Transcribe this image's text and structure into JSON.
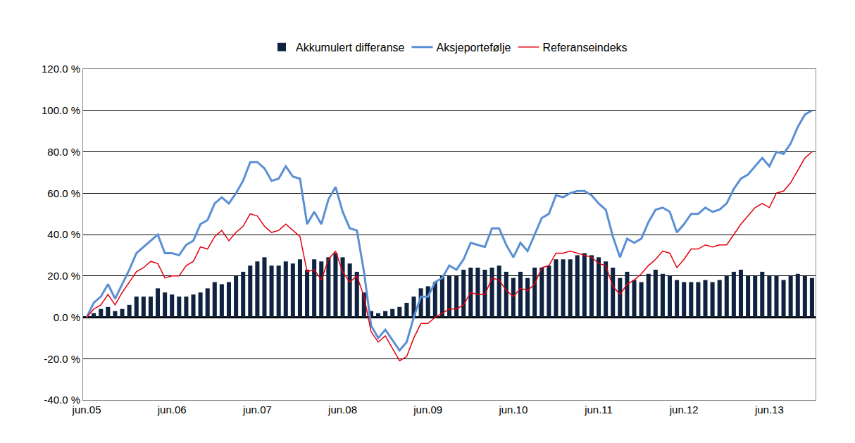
{
  "chart_data": {
    "type": "bar",
    "categories": [
      "jun.05",
      null,
      null,
      null,
      null,
      null,
      null,
      null,
      null,
      null,
      null,
      null,
      "jun.06",
      null,
      null,
      null,
      null,
      null,
      null,
      null,
      null,
      null,
      null,
      null,
      "jun.07",
      null,
      null,
      null,
      null,
      null,
      null,
      null,
      null,
      null,
      null,
      null,
      "jun.08",
      null,
      null,
      null,
      null,
      null,
      null,
      null,
      null,
      null,
      null,
      null,
      "jun.09",
      null,
      null,
      null,
      null,
      null,
      null,
      null,
      null,
      null,
      null,
      null,
      "jun.10",
      null,
      null,
      null,
      null,
      null,
      null,
      null,
      null,
      null,
      null,
      null,
      "jun.11",
      null,
      null,
      null,
      null,
      null,
      null,
      null,
      null,
      null,
      null,
      null,
      "jun.12",
      null,
      null,
      null,
      null,
      null,
      null,
      null,
      null,
      null,
      null,
      null,
      "jun.13",
      null,
      null,
      null,
      null,
      null,
      null
    ],
    "series": [
      {
        "name": "Akkumulert differanse",
        "type": "bar",
        "color": "#0f2340",
        "values": [
          0,
          2,
          4,
          5,
          3,
          4,
          6,
          10,
          10,
          10,
          14,
          12,
          11,
          10,
          10,
          11,
          12,
          14,
          17,
          16,
          17,
          20,
          22,
          25,
          27,
          29,
          25,
          25,
          27,
          26,
          28,
          23,
          28,
          27,
          29,
          31,
          29,
          26,
          22,
          12,
          3,
          2,
          3,
          4,
          5,
          7,
          10,
          14,
          15,
          17,
          20,
          20,
          20,
          23,
          24,
          24,
          23,
          24,
          25,
          22,
          19,
          22,
          19,
          24,
          24,
          25,
          28,
          28,
          28,
          30,
          31,
          30,
          29,
          27,
          24,
          19,
          22,
          18,
          17,
          21,
          23,
          21,
          20,
          18,
          17,
          17,
          17,
          18,
          17,
          18,
          20,
          22,
          23,
          20,
          20,
          22,
          20,
          20,
          18,
          20,
          21,
          20,
          19
        ]
      },
      {
        "name": "Aksjeportefølje",
        "type": "line",
        "color": "#5b8fd4",
        "values": [
          0,
          7,
          10,
          16,
          9,
          16,
          23,
          31,
          34,
          37,
          40,
          31,
          31,
          30,
          35,
          37,
          45,
          47,
          55,
          58,
          55,
          60,
          66,
          75,
          75,
          72,
          66,
          67,
          73,
          68,
          67,
          45,
          51,
          45,
          57,
          63,
          51,
          43,
          42,
          22,
          -4,
          -10,
          -6,
          -11,
          -16,
          -12,
          0,
          10,
          10,
          17,
          19,
          25,
          23,
          28,
          36,
          35,
          34,
          43,
          43,
          35,
          29,
          36,
          32,
          40,
          48,
          50,
          59,
          58,
          60,
          61,
          61,
          59,
          55,
          52,
          39,
          29,
          38,
          36,
          38,
          46,
          52,
          53,
          51,
          41,
          45,
          50,
          50,
          53,
          51,
          52,
          55,
          62,
          67,
          69,
          73,
          77,
          73,
          80,
          79,
          84,
          92,
          98,
          100
        ]
      },
      {
        "name": "Referanseindeks",
        "type": "line",
        "color": "#e3000f",
        "values": [
          0,
          4,
          6,
          11,
          6,
          12,
          17,
          22,
          24,
          27,
          26,
          19,
          20,
          20,
          25,
          27,
          34,
          33,
          39,
          42,
          37,
          41,
          44,
          50,
          49,
          44,
          41,
          42,
          45,
          42,
          39,
          22,
          23,
          18,
          28,
          32,
          22,
          17,
          20,
          10,
          -7,
          -12,
          -9,
          -15,
          -21,
          -19,
          -10,
          -3,
          -3,
          0,
          2,
          4,
          4,
          6,
          12,
          11,
          11,
          19,
          18,
          13,
          10,
          14,
          13,
          16,
          24,
          25,
          31,
          31,
          32,
          31,
          30,
          29,
          26,
          25,
          15,
          11,
          16,
          18,
          21,
          25,
          28,
          32,
          31,
          24,
          28,
          33,
          33,
          35,
          34,
          35,
          35,
          40,
          45,
          49,
          53,
          55,
          53,
          60,
          61,
          65,
          71,
          77,
          80
        ]
      }
    ],
    "ylim": [
      -40,
      120
    ],
    "yticks": [
      {
        "value": -40,
        "label": "-40.0 %"
      },
      {
        "value": -20,
        "label": "-20.0 %"
      },
      {
        "value": 0,
        "label": "0.0 %"
      },
      {
        "value": 20,
        "label": "20.0 %"
      },
      {
        "value": 40,
        "label": "40.0 %"
      },
      {
        "value": 60,
        "label": "60.0 %"
      },
      {
        "value": 80,
        "label": "80.0 %"
      },
      {
        "value": 100,
        "label": "100.0 %"
      },
      {
        "value": 120,
        "label": "120.0 %"
      }
    ],
    "grid": true,
    "legend": "top"
  }
}
